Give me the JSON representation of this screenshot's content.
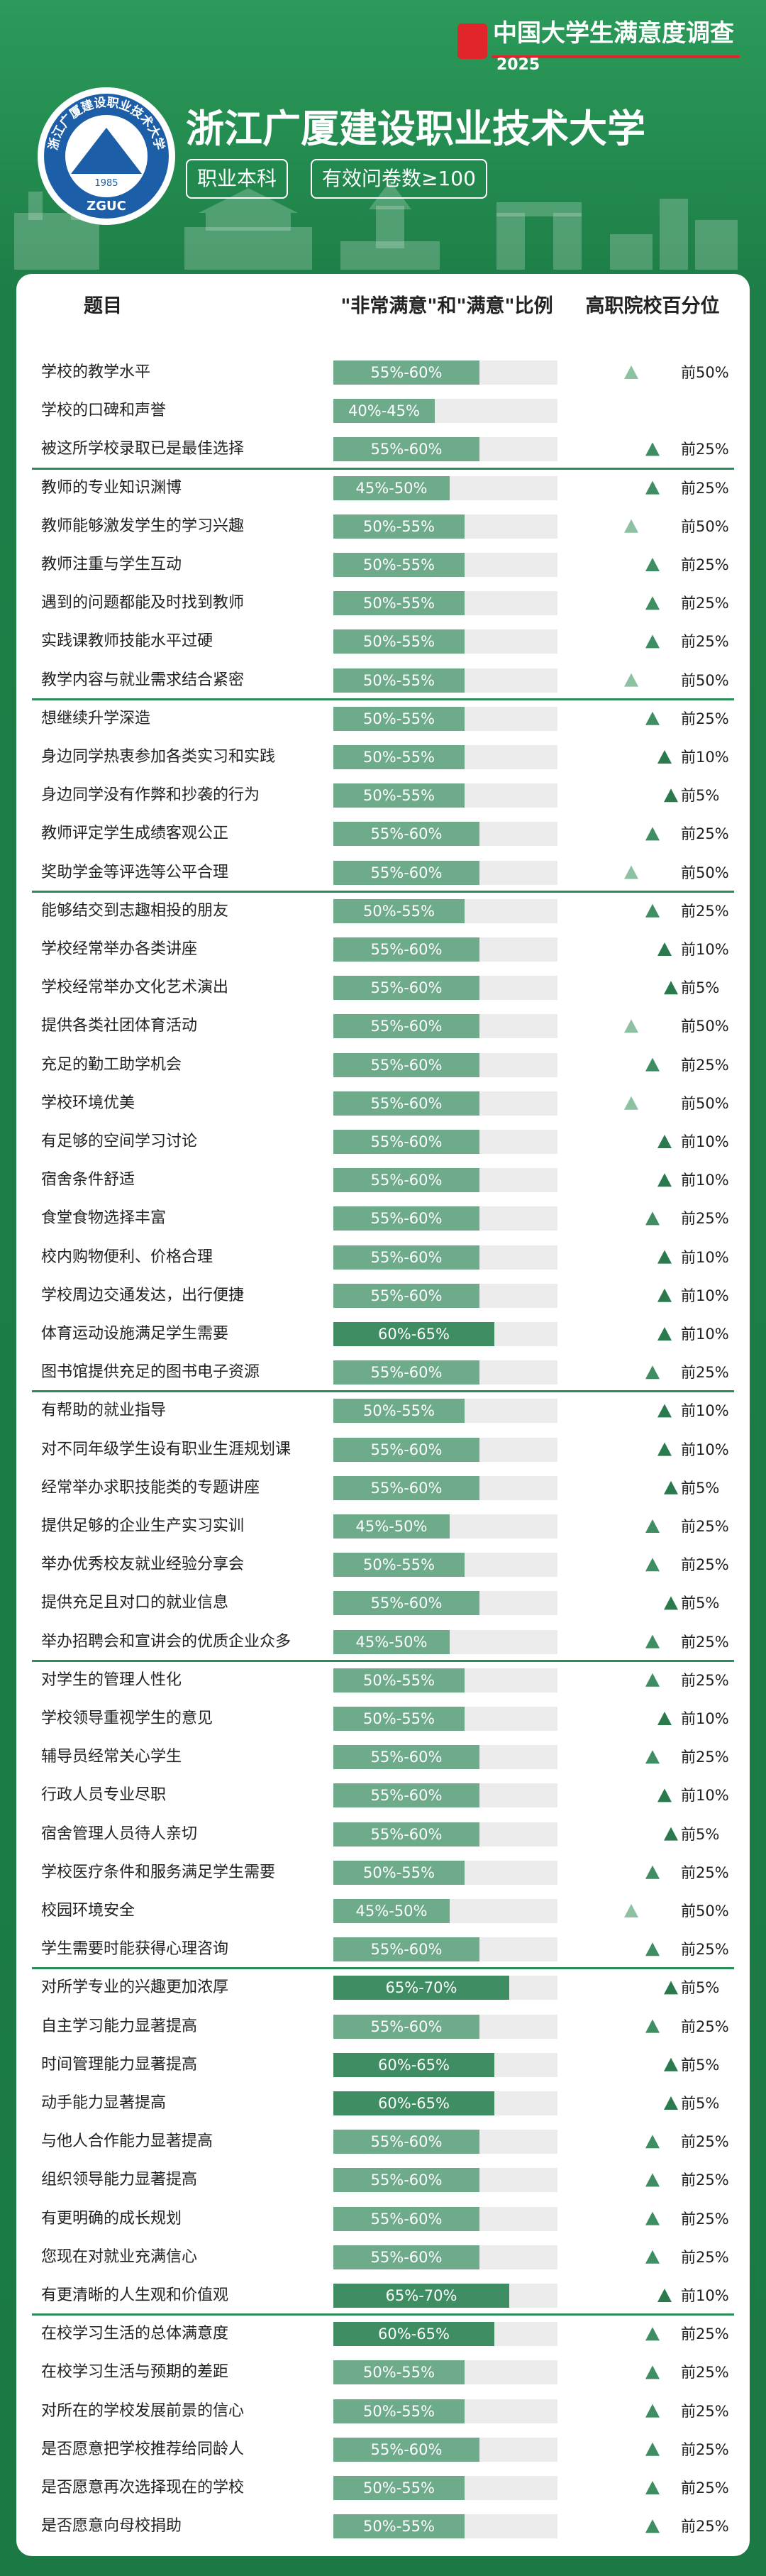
{
  "header": {
    "brand": "中国大学生满意度调查",
    "year": "2025",
    "school": "浙江广厦建设职业技术大学",
    "tags": [
      "职业本科",
      "有效问卷数≥100"
    ],
    "logo": {
      "ring_text": "浙江广厦建设职业技术大学",
      "year": "1985",
      "abbr": "ZGUC"
    }
  },
  "table": {
    "columns": [
      "题目",
      "\"非常满意\"和\"满意\"比例",
      "高职院校百分位"
    ],
    "groups": [
      [
        {
          "item": "学校的教学水平",
          "range": "55%-60%",
          "percentile": "前50%"
        },
        {
          "item": "学校的口碑和声誉",
          "range": "40%-45%",
          "percentile": null
        },
        {
          "item": "被这所学校录取已是最佳选择",
          "range": "55%-60%",
          "percentile": "前25%"
        }
      ],
      [
        {
          "item": "教师的专业知识渊博",
          "range": "45%-50%",
          "percentile": "前25%"
        },
        {
          "item": "教师能够激发学生的学习兴趣",
          "range": "50%-55%",
          "percentile": "前50%"
        },
        {
          "item": "教师注重与学生互动",
          "range": "50%-55%",
          "percentile": "前25%"
        },
        {
          "item": "遇到的问题都能及时找到教师",
          "range": "50%-55%",
          "percentile": "前25%"
        },
        {
          "item": "实践课教师技能水平过硬",
          "range": "50%-55%",
          "percentile": "前25%"
        },
        {
          "item": "教学内容与就业需求结合紧密",
          "range": "50%-55%",
          "percentile": "前50%"
        }
      ],
      [
        {
          "item": "想继续升学深造",
          "range": "50%-55%",
          "percentile": "前25%"
        },
        {
          "item": "身边同学热衷参加各类实习和实践",
          "range": "50%-55%",
          "percentile": "前10%"
        },
        {
          "item": "身边同学没有作弊和抄袭的行为",
          "range": "50%-55%",
          "percentile": "前5%"
        },
        {
          "item": "教师评定学生成绩客观公正",
          "range": "55%-60%",
          "percentile": "前25%"
        },
        {
          "item": "奖助学金等评选等公平合理",
          "range": "55%-60%",
          "percentile": "前50%"
        }
      ],
      [
        {
          "item": "能够结交到志趣相投的朋友",
          "range": "50%-55%",
          "percentile": "前25%"
        },
        {
          "item": "学校经常举办各类讲座",
          "range": "55%-60%",
          "percentile": "前10%"
        },
        {
          "item": "学校经常举办文化艺术演出",
          "range": "55%-60%",
          "percentile": "前5%"
        },
        {
          "item": "提供各类社团体育活动",
          "range": "55%-60%",
          "percentile": "前50%"
        },
        {
          "item": "充足的勤工助学机会",
          "range": "55%-60%",
          "percentile": "前25%"
        },
        {
          "item": "学校环境优美",
          "range": "55%-60%",
          "percentile": "前50%"
        },
        {
          "item": "有足够的空间学习讨论",
          "range": "55%-60%",
          "percentile": "前10%"
        },
        {
          "item": "宿舍条件舒适",
          "range": "55%-60%",
          "percentile": "前10%"
        },
        {
          "item": "食堂食物选择丰富",
          "range": "55%-60%",
          "percentile": "前25%"
        },
        {
          "item": "校内购物便利、价格合理",
          "range": "55%-60%",
          "percentile": "前10%"
        },
        {
          "item": "学校周边交通发达，出行便捷",
          "range": "55%-60%",
          "percentile": "前10%"
        },
        {
          "item": "体育运动设施满足学生需要",
          "range": "60%-65%",
          "percentile": "前10%"
        },
        {
          "item": "图书馆提供充足的图书电子资源",
          "range": "55%-60%",
          "percentile": "前25%"
        }
      ],
      [
        {
          "item": "有帮助的就业指导",
          "range": "50%-55%",
          "percentile": "前10%"
        },
        {
          "item": "对不同年级学生设有职业生涯规划课",
          "range": "55%-60%",
          "percentile": "前10%"
        },
        {
          "item": "经常举办求职技能类的专题讲座",
          "range": "55%-60%",
          "percentile": "前5%"
        },
        {
          "item": "提供足够的企业生产实习实训",
          "range": "45%-50%",
          "percentile": "前25%"
        },
        {
          "item": "举办优秀校友就业经验分享会",
          "range": "50%-55%",
          "percentile": "前25%"
        },
        {
          "item": "提供充足且对口的就业信息",
          "range": "55%-60%",
          "percentile": "前5%"
        },
        {
          "item": "举办招聘会和宣讲会的优质企业众多",
          "range": "45%-50%",
          "percentile": "前25%"
        }
      ],
      [
        {
          "item": "对学生的管理人性化",
          "range": "50%-55%",
          "percentile": "前25%"
        },
        {
          "item": "学校领导重视学生的意见",
          "range": "50%-55%",
          "percentile": "前10%"
        },
        {
          "item": "辅导员经常关心学生",
          "range": "55%-60%",
          "percentile": "前25%"
        },
        {
          "item": "行政人员专业尽职",
          "range": "55%-60%",
          "percentile": "前10%"
        },
        {
          "item": "宿舍管理人员待人亲切",
          "range": "55%-60%",
          "percentile": "前5%"
        },
        {
          "item": "学校医疗条件和服务满足学生需要",
          "range": "50%-55%",
          "percentile": "前25%"
        },
        {
          "item": "校园环境安全",
          "range": "45%-50%",
          "percentile": "前50%"
        },
        {
          "item": "学生需要时能获得心理咨询",
          "range": "55%-60%",
          "percentile": "前25%"
        }
      ],
      [
        {
          "item": "对所学专业的兴趣更加浓厚",
          "range": "65%-70%",
          "percentile": "前5%"
        },
        {
          "item": "自主学习能力显著提高",
          "range": "55%-60%",
          "percentile": "前25%"
        },
        {
          "item": "时间管理能力显著提高",
          "range": "60%-65%",
          "percentile": "前5%"
        },
        {
          "item": "动手能力显著提高",
          "range": "60%-65%",
          "percentile": "前5%"
        },
        {
          "item": "与他人合作能力显著提高",
          "range": "55%-60%",
          "percentile": "前25%"
        },
        {
          "item": "组织领导能力显著提高",
          "range": "55%-60%",
          "percentile": "前25%"
        },
        {
          "item": "有更明确的成长规划",
          "range": "55%-60%",
          "percentile": "前25%"
        },
        {
          "item": "您现在对就业充满信心",
          "range": "55%-60%",
          "percentile": "前25%"
        },
        {
          "item": "有更清晰的人生观和价值观",
          "range": "65%-70%",
          "percentile": "前10%"
        }
      ],
      [
        {
          "item": "在校学习生活的总体满意度",
          "range": "60%-65%",
          "percentile": "前25%"
        },
        {
          "item": "在校学习生活与预期的差距",
          "range": "50%-55%",
          "percentile": "前25%"
        },
        {
          "item": "对所在的学校发展前景的信心",
          "range": "50%-55%",
          "percentile": "前25%"
        },
        {
          "item": "是否愿意把学校推荐给同龄人",
          "range": "55%-60%",
          "percentile": "前25%"
        },
        {
          "item": "是否愿意再次选择现在的学校",
          "range": "50%-55%",
          "percentile": "前25%"
        },
        {
          "item": "是否愿意向母校捐助",
          "range": "50%-55%",
          "percentile": "前25%"
        }
      ]
    ]
  }
}
